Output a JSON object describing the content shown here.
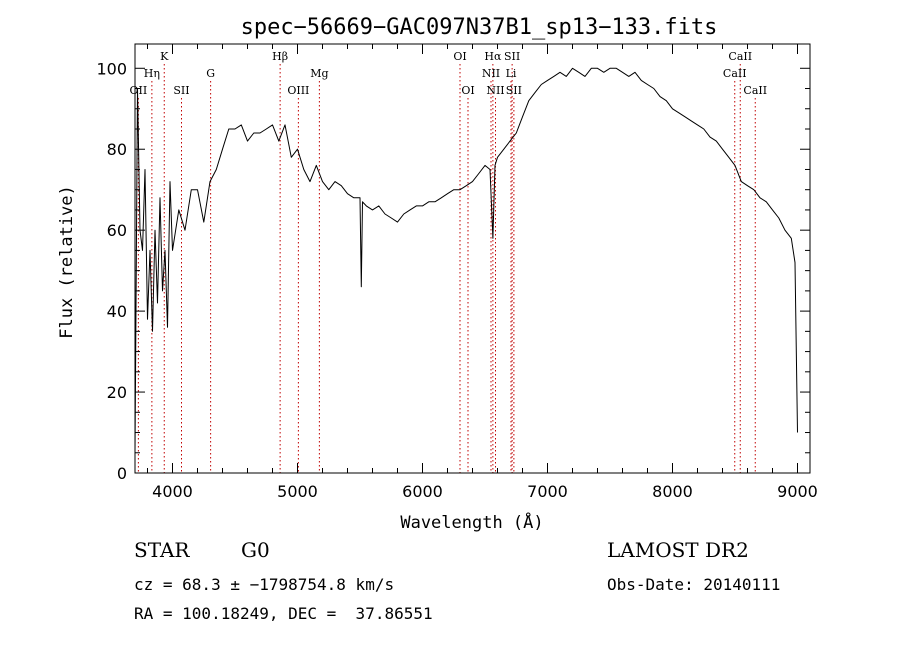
{
  "chart_data": {
    "type": "line",
    "title": "spec−56669−GAC097N37B1_sp13−133.fits",
    "xlabel": "Wavelength (Å)",
    "ylabel": "Flux (relative)",
    "xlim": [
      3700,
      9100
    ],
    "ylim": [
      0,
      106
    ],
    "xticks": [
      4000,
      5000,
      6000,
      7000,
      8000,
      9000
    ],
    "yticks": [
      0,
      20,
      40,
      60,
      80,
      100
    ],
    "grid": false,
    "line_color": "#000000",
    "marker_color": "#c00000",
    "spectral_lines": [
      {
        "label": "OII",
        "x": 3727,
        "row": 3
      },
      {
        "label": "Hη",
        "x": 3835,
        "row": 2
      },
      {
        "label": "K",
        "x": 3934,
        "row": 1
      },
      {
        "label": "SII",
        "x": 4072,
        "row": 3
      },
      {
        "label": "G",
        "x": 4305,
        "row": 2
      },
      {
        "label": "Hβ",
        "x": 4861,
        "row": 1
      },
      {
        "label": "OIII",
        "x": 5007,
        "row": 3
      },
      {
        "label": "Mg",
        "x": 5175,
        "row": 2
      },
      {
        "label": "OI",
        "x": 6300,
        "row": 1
      },
      {
        "label": "OI",
        "x": 6364,
        "row": 3
      },
      {
        "label": "Hα",
        "x": 6563,
        "row": 1
      },
      {
        "label": "NII",
        "x": 6548,
        "row": 2
      },
      {
        "label": "NII",
        "x": 6584,
        "row": 3
      },
      {
        "label": "SII",
        "x": 6717,
        "row": 1
      },
      {
        "label": "Li",
        "x": 6708,
        "row": 2
      },
      {
        "label": "SII",
        "x": 6731,
        "row": 3
      },
      {
        "label": "CaII",
        "x": 8542,
        "row": 1
      },
      {
        "label": "CaII",
        "x": 8498,
        "row": 2
      },
      {
        "label": "CaII",
        "x": 8662,
        "row": 3
      }
    ],
    "series": [
      {
        "x": [
          3700,
          3720,
          3740,
          3760,
          3780,
          3800,
          3820,
          3840,
          3860,
          3880,
          3900,
          3920,
          3940,
          3960,
          3980,
          4000,
          4050,
          4100,
          4150,
          4200,
          4250,
          4300,
          4350,
          4400,
          4450,
          4500,
          4550,
          4600,
          4650,
          4700,
          4750,
          4800,
          4850,
          4900,
          4950,
          5000,
          5050,
          5100,
          5150,
          5200,
          5250,
          5300,
          5350,
          5400,
          5450,
          5500,
          5510,
          5520,
          5550,
          5600,
          5650,
          5700,
          5750,
          5800,
          5850,
          5900,
          5950,
          6000,
          6050,
          6100,
          6150,
          6200,
          6250,
          6300,
          6350,
          6400,
          6450,
          6500,
          6540,
          6563,
          6580,
          6600,
          6650,
          6700,
          6750,
          6800,
          6850,
          6900,
          6950,
          7000,
          7050,
          7100,
          7150,
          7200,
          7250,
          7300,
          7350,
          7400,
          7450,
          7500,
          7550,
          7600,
          7650,
          7700,
          7750,
          7800,
          7850,
          7900,
          7950,
          8000,
          8050,
          8100,
          8150,
          8200,
          8250,
          8300,
          8350,
          8400,
          8450,
          8500,
          8550,
          8600,
          8650,
          8700,
          8750,
          8800,
          8850,
          8900,
          8950,
          8980,
          9000
        ],
        "y": [
          5,
          95,
          60,
          55,
          75,
          38,
          55,
          35,
          60,
          42,
          68,
          45,
          55,
          36,
          72,
          55,
          65,
          60,
          70,
          70,
          62,
          72,
          75,
          80,
          85,
          85,
          86,
          82,
          84,
          84,
          85,
          86,
          82,
          86,
          78,
          80,
          75,
          72,
          76,
          72,
          70,
          72,
          71,
          69,
          68,
          68,
          46,
          67,
          66,
          65,
          66,
          64,
          63,
          62,
          64,
          65,
          66,
          66,
          67,
          67,
          68,
          69,
          70,
          70,
          71,
          72,
          74,
          76,
          75,
          58,
          76,
          78,
          80,
          82,
          84,
          88,
          92,
          94,
          96,
          97,
          98,
          99,
          98,
          100,
          99,
          98,
          100,
          100,
          99,
          100,
          100,
          99,
          98,
          99,
          97,
          96,
          95,
          93,
          92,
          90,
          89,
          88,
          87,
          86,
          85,
          83,
          82,
          80,
          78,
          76,
          72,
          71,
          70,
          68,
          67,
          65,
          63,
          60,
          58,
          52,
          10
        ]
      }
    ]
  },
  "info": {
    "object_class": "STAR",
    "subclass": "G0",
    "survey": "LAMOST DR2",
    "redshift": "cz = 68.3 ± −1798754.8 km/s",
    "obs_date": "Obs-Date: 20140111",
    "coords": "RA = 100.18249, DEC =  37.86551"
  }
}
